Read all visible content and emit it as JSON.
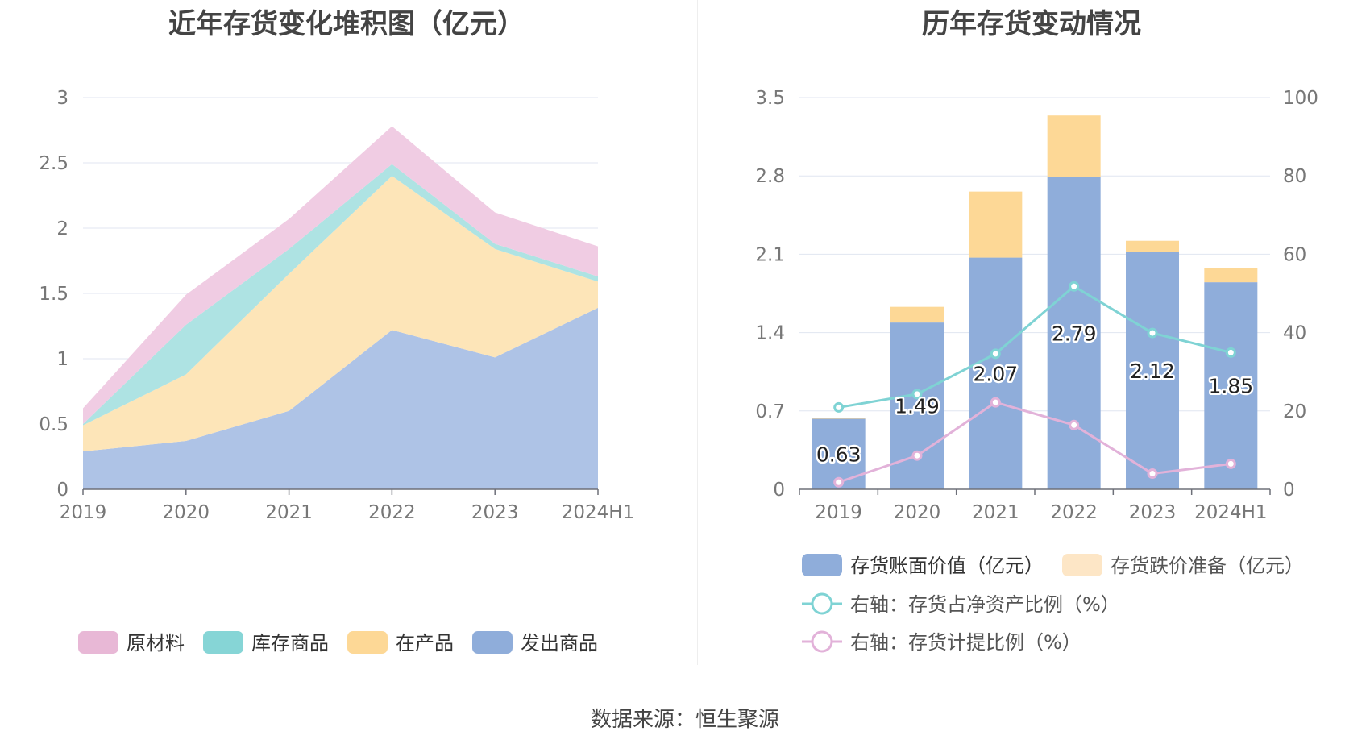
{
  "left_title": "近年存货变化堆积图（亿元）",
  "right_title": "历年存货变动情况",
  "source_text": "数据来源：恒生聚源",
  "chart_data": [
    {
      "type": "area",
      "stacked": true,
      "title": "近年存货变化堆积图（亿元）",
      "categories": [
        "2019",
        "2020",
        "2021",
        "2022",
        "2023",
        "2024H1"
      ],
      "ylim": [
        0,
        3
      ],
      "yticks": [
        "0",
        "0.5",
        "1",
        "1.5",
        "2",
        "2.5",
        "3"
      ],
      "ytick_values": [
        0,
        0.5,
        1,
        1.5,
        2,
        2.5,
        3
      ],
      "grid": true,
      "legend_position": "bottom",
      "series": [
        {
          "name": "发出商品",
          "color": "#aec3e6",
          "legend_color": "#8fadda",
          "values": [
            0.29,
            0.37,
            0.6,
            1.22,
            1.01,
            1.39
          ]
        },
        {
          "name": "在产品",
          "color": "#fde5b8",
          "legend_color": "#fdd896",
          "values": [
            0.2,
            0.51,
            1.05,
            1.18,
            0.83,
            0.2
          ]
        },
        {
          "name": "库存商品",
          "color": "#aee3e3",
          "legend_color": "#86d5d6",
          "values": [
            0.01,
            0.38,
            0.19,
            0.09,
            0.04,
            0.04
          ]
        },
        {
          "name": "原材料",
          "color": "#f0cce3",
          "legend_color": "#e8b8d6",
          "values": [
            0.12,
            0.23,
            0.23,
            0.29,
            0.24,
            0.23
          ]
        }
      ],
      "legend_order": [
        "原材料",
        "库存商品",
        "在产品",
        "发出商品"
      ]
    },
    {
      "type": "bar",
      "stacked": true,
      "title": "历年存货变动情况",
      "categories": [
        "2019",
        "2020",
        "2021",
        "2022",
        "2023",
        "2024H1"
      ],
      "ylim_left": [
        0,
        3.5
      ],
      "yticks_left": [
        "0",
        "0.7",
        "1.4",
        "2.1",
        "2.8",
        "3.5"
      ],
      "ytick_values_left": [
        0,
        0.7,
        1.4,
        2.1,
        2.8,
        3.5
      ],
      "ylim_right": [
        0,
        100
      ],
      "yticks_right": [
        "0",
        "20",
        "40",
        "60",
        "80",
        "100"
      ],
      "ytick_values_right": [
        0,
        20,
        40,
        60,
        80,
        100
      ],
      "grid": true,
      "legend_position": "bottom",
      "bars": [
        {
          "name": "存货账面价值（亿元）",
          "color": "#8fadda",
          "values": [
            0.63,
            1.49,
            2.07,
            2.79,
            2.12,
            1.85
          ],
          "labels": [
            "0.63",
            "1.49",
            "2.07",
            "2.79",
            "2.12",
            "1.85"
          ]
        },
        {
          "name": "存货跌价准备（亿元）",
          "color": "#fdd896",
          "legend_color": "#fde6c6",
          "values": [
            0.01,
            0.14,
            0.59,
            0.55,
            0.1,
            0.13
          ]
        }
      ],
      "lines": [
        {
          "name": "右轴：存货占净资产比例（%）",
          "color": "#7fd3d4",
          "axis": "right",
          "values": [
            20.9,
            24.3,
            34.6,
            51.8,
            39.9,
            34.9
          ]
        },
        {
          "name": "右轴：存货计提比例（%）",
          "color": "#e2b2d9",
          "axis": "right",
          "values": [
            1.8,
            8.6,
            22.2,
            16.4,
            4.0,
            6.5
          ]
        }
      ]
    }
  ]
}
